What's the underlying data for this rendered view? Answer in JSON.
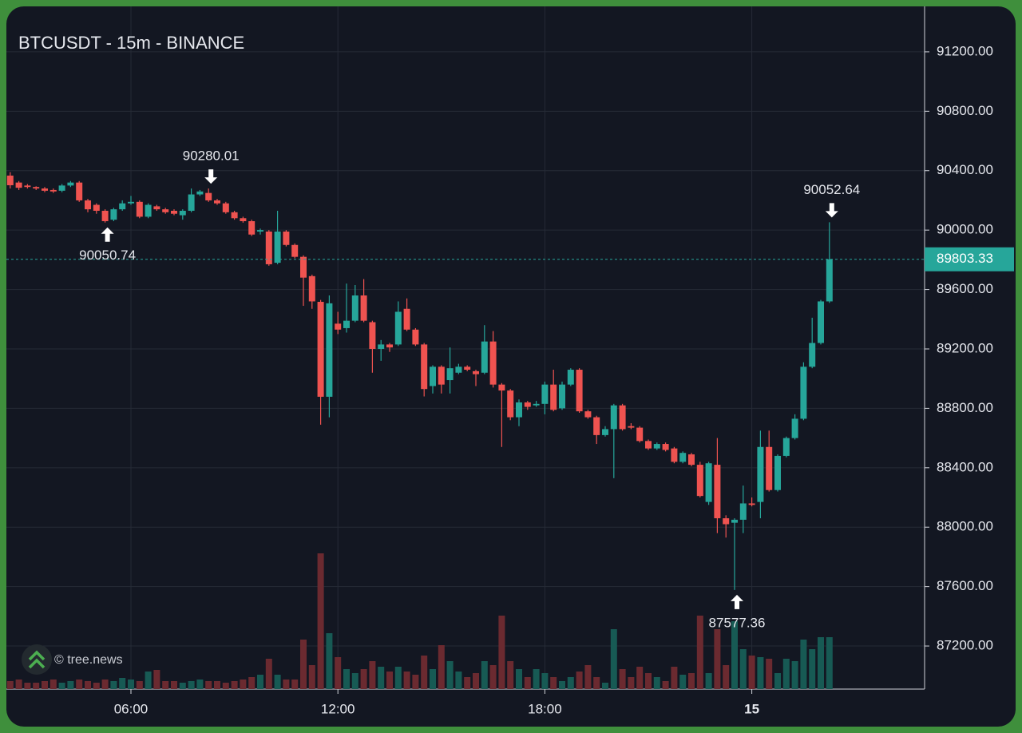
{
  "chart_data": {
    "type": "candlestick",
    "title": "BTCUSDT - 15m - BINANCE",
    "watermark": "© tree.news",
    "categories": [
      null,
      null,
      null,
      null,
      null,
      null,
      null,
      null,
      null,
      null,
      null,
      null,
      null,
      null,
      "06:00",
      null,
      null,
      null,
      null,
      null,
      null,
      null,
      null,
      null,
      null,
      null,
      null,
      null,
      null,
      null,
      null,
      null,
      null,
      null,
      null,
      null,
      null,
      null,
      "12:00",
      null,
      null,
      null,
      null,
      null,
      null,
      null,
      null,
      null,
      null,
      null,
      null,
      null,
      null,
      null,
      null,
      null,
      null,
      null,
      null,
      null,
      null,
      null,
      "18:00",
      null,
      null,
      null,
      null,
      null,
      null,
      null,
      null,
      null,
      null,
      null,
      null,
      null,
      null,
      null,
      null,
      null,
      null,
      null,
      null,
      null,
      null,
      null,
      "15",
      null,
      null,
      null,
      null,
      null,
      null,
      null,
      null,
      null
    ],
    "open": [
      90367,
      90320,
      90300,
      90290,
      90280,
      90270,
      90265,
      90300,
      90320,
      90200,
      90170,
      90130,
      90070,
      90140,
      90180,
      90190,
      90090,
      90160,
      90140,
      90130,
      90100,
      90130,
      90240,
      90250,
      90200,
      90180,
      90120,
      90080,
      90060,
      89990,
      89990,
      89780,
      89990,
      89900,
      89820,
      89690,
      89517,
      88878,
      89370,
      89340,
      89390,
      89560,
      89380,
      89200,
      89230,
      89230,
      89470,
      89330,
      89230,
      88950,
      89080,
      88990,
      89040,
      89080,
      89050,
      89040,
      89250,
      88960,
      88920,
      88740,
      88840,
      88820,
      88830,
      88960,
      88800,
      88960,
      89060,
      88780,
      88740,
      88620,
      88660,
      88820,
      88680,
      88670,
      88580,
      88530,
      88560,
      88530,
      88440,
      88490,
      88420,
      88170,
      88420,
      88060,
      88030,
      88050,
      88160,
      88170,
      88540,
      88250,
      88480,
      88600,
      88730,
      89080,
      89240,
      89520
    ],
    "high": [
      90390,
      90330,
      90310,
      90295,
      90290,
      90280,
      90310,
      90330,
      90330,
      90210,
      90180,
      90140,
      90150,
      90200,
      90230,
      90200,
      90180,
      90170,
      90150,
      90140,
      90140,
      90280,
      90270,
      90280.01,
      90210,
      90190,
      90130,
      90090,
      90070,
      90010,
      90000,
      90130,
      90000,
      89910,
      89830,
      89700,
      89530,
      89560,
      89450,
      89640,
      89630,
      89670,
      89390,
      89260,
      89240,
      89520,
      89540,
      89340,
      89240,
      89090,
      89090,
      89210,
      89100,
      89090,
      89060,
      89360,
      89320,
      88970,
      88930,
      88860,
      88850,
      88850,
      88980,
      89060,
      88980,
      89070,
      89070,
      88790,
      88750,
      88680,
      88830,
      88830,
      88700,
      88680,
      88590,
      88570,
      88570,
      88540,
      88510,
      88500,
      88440,
      88440,
      88600,
      88080,
      88060,
      88280,
      88200,
      88650,
      88650,
      88490,
      88610,
      88760,
      89110,
      89410,
      89530,
      90052.64
    ],
    "low": [
      90280,
      90270,
      90280,
      90270,
      90255,
      90250,
      90255,
      90290,
      90190,
      90120,
      90110,
      90050.74,
      90060,
      90130,
      90170,
      90080,
      90080,
      90130,
      90110,
      90100,
      90070,
      90120,
      90230,
      90190,
      90170,
      90110,
      90070,
      90050,
      89960,
      89970,
      89760,
      89770,
      89890,
      89810,
      89490,
      89470,
      88690,
      88740,
      89300,
      89310,
      89380,
      89380,
      89040,
      89120,
      89180,
      89220,
      89320,
      89220,
      88880,
      88900,
      88900,
      88900,
      89030,
      89050,
      88950,
      89030,
      88940,
      88540,
      88720,
      88680,
      88790,
      88810,
      88760,
      88780,
      88790,
      88950,
      88770,
      88730,
      88560,
      88610,
      88330,
      88650,
      88660,
      88570,
      88520,
      88520,
      88510,
      88430,
      88430,
      88410,
      88200,
      88150,
      87960,
      87930,
      87577.36,
      87960,
      88140,
      88060,
      88240,
      88240,
      88470,
      88590,
      88720,
      89070,
      89230,
      89510
    ],
    "close": [
      90302,
      90285,
      90290,
      90280,
      90265,
      90260,
      90300,
      90320,
      90200,
      90140,
      90130,
      90060,
      90140,
      90180,
      90190,
      90090,
      90170,
      90140,
      90120,
      90110,
      90130,
      90240,
      90260,
      90200,
      90180,
      90120,
      90080,
      90060,
      89970,
      90000,
      89770,
      89990,
      89900,
      89820,
      89680,
      89520,
      88878,
      89507,
      89330,
      89390,
      89560,
      89390,
      89200,
      89230,
      89210,
      89450,
      89330,
      89230,
      88930,
      89080,
      88960,
      89070,
      89080,
      89060,
      89030,
      89250,
      88960,
      88920,
      88740,
      88840,
      88810,
      88830,
      88960,
      88790,
      88960,
      89060,
      88780,
      88740,
      88620,
      88660,
      88820,
      88660,
      88670,
      88580,
      88530,
      88560,
      88520,
      88440,
      88500,
      88420,
      88210,
      88430,
      88060,
      88020,
      88050,
      88160,
      88150,
      88540,
      88250,
      88480,
      88600,
      88730,
      89080,
      89240,
      89520,
      89803.33
    ],
    "volume": [
      10,
      12,
      8,
      8,
      10,
      12,
      8,
      10,
      12,
      10,
      8,
      12,
      10,
      14,
      12,
      10,
      22,
      24,
      10,
      10,
      8,
      10,
      12,
      10,
      10,
      8,
      10,
      12,
      15,
      18,
      38,
      18,
      12,
      12,
      62,
      30,
      170,
      70,
      40,
      25,
      20,
      25,
      35,
      28,
      22,
      28,
      22,
      18,
      42,
      25,
      55,
      35,
      22,
      15,
      20,
      35,
      30,
      92,
      35,
      25,
      15,
      25,
      20,
      15,
      10,
      15,
      22,
      30,
      15,
      8,
      75,
      25,
      15,
      28,
      20,
      15,
      10,
      28,
      18,
      20,
      92,
      20,
      75,
      30,
      85,
      50,
      42,
      40,
      38,
      20,
      38,
      35,
      62,
      50,
      65,
      65
    ],
    "vlim": [
      0,
      200
    ],
    "high_low_labels": [
      90280.01,
      90050.74,
      90052.64,
      87577.36
    ],
    "ylim": [
      86910,
      91506
    ],
    "yticks": [
      {
        "value": 87200,
        "label": "87200.00"
      },
      {
        "value": 87600,
        "label": "87600.00"
      },
      {
        "value": 88000,
        "label": "88000.00"
      },
      {
        "value": 88400,
        "label": "88400.00"
      },
      {
        "value": 88800,
        "label": "88800.00"
      },
      {
        "value": 89200,
        "label": "89200.00"
      },
      {
        "value": 89600,
        "label": "89600.00"
      },
      {
        "value": 90000,
        "label": "90000.00"
      },
      {
        "value": 90400,
        "label": "90400.00"
      },
      {
        "value": 90800,
        "label": "90800.00"
      },
      {
        "value": 91200,
        "label": "91200.00"
      }
    ],
    "up_color": "#26a69a",
    "down_color": "#ef5350",
    "volume_up_color": "#175a54",
    "volume_down_color": "#6b2a30",
    "grid": true
  }
}
